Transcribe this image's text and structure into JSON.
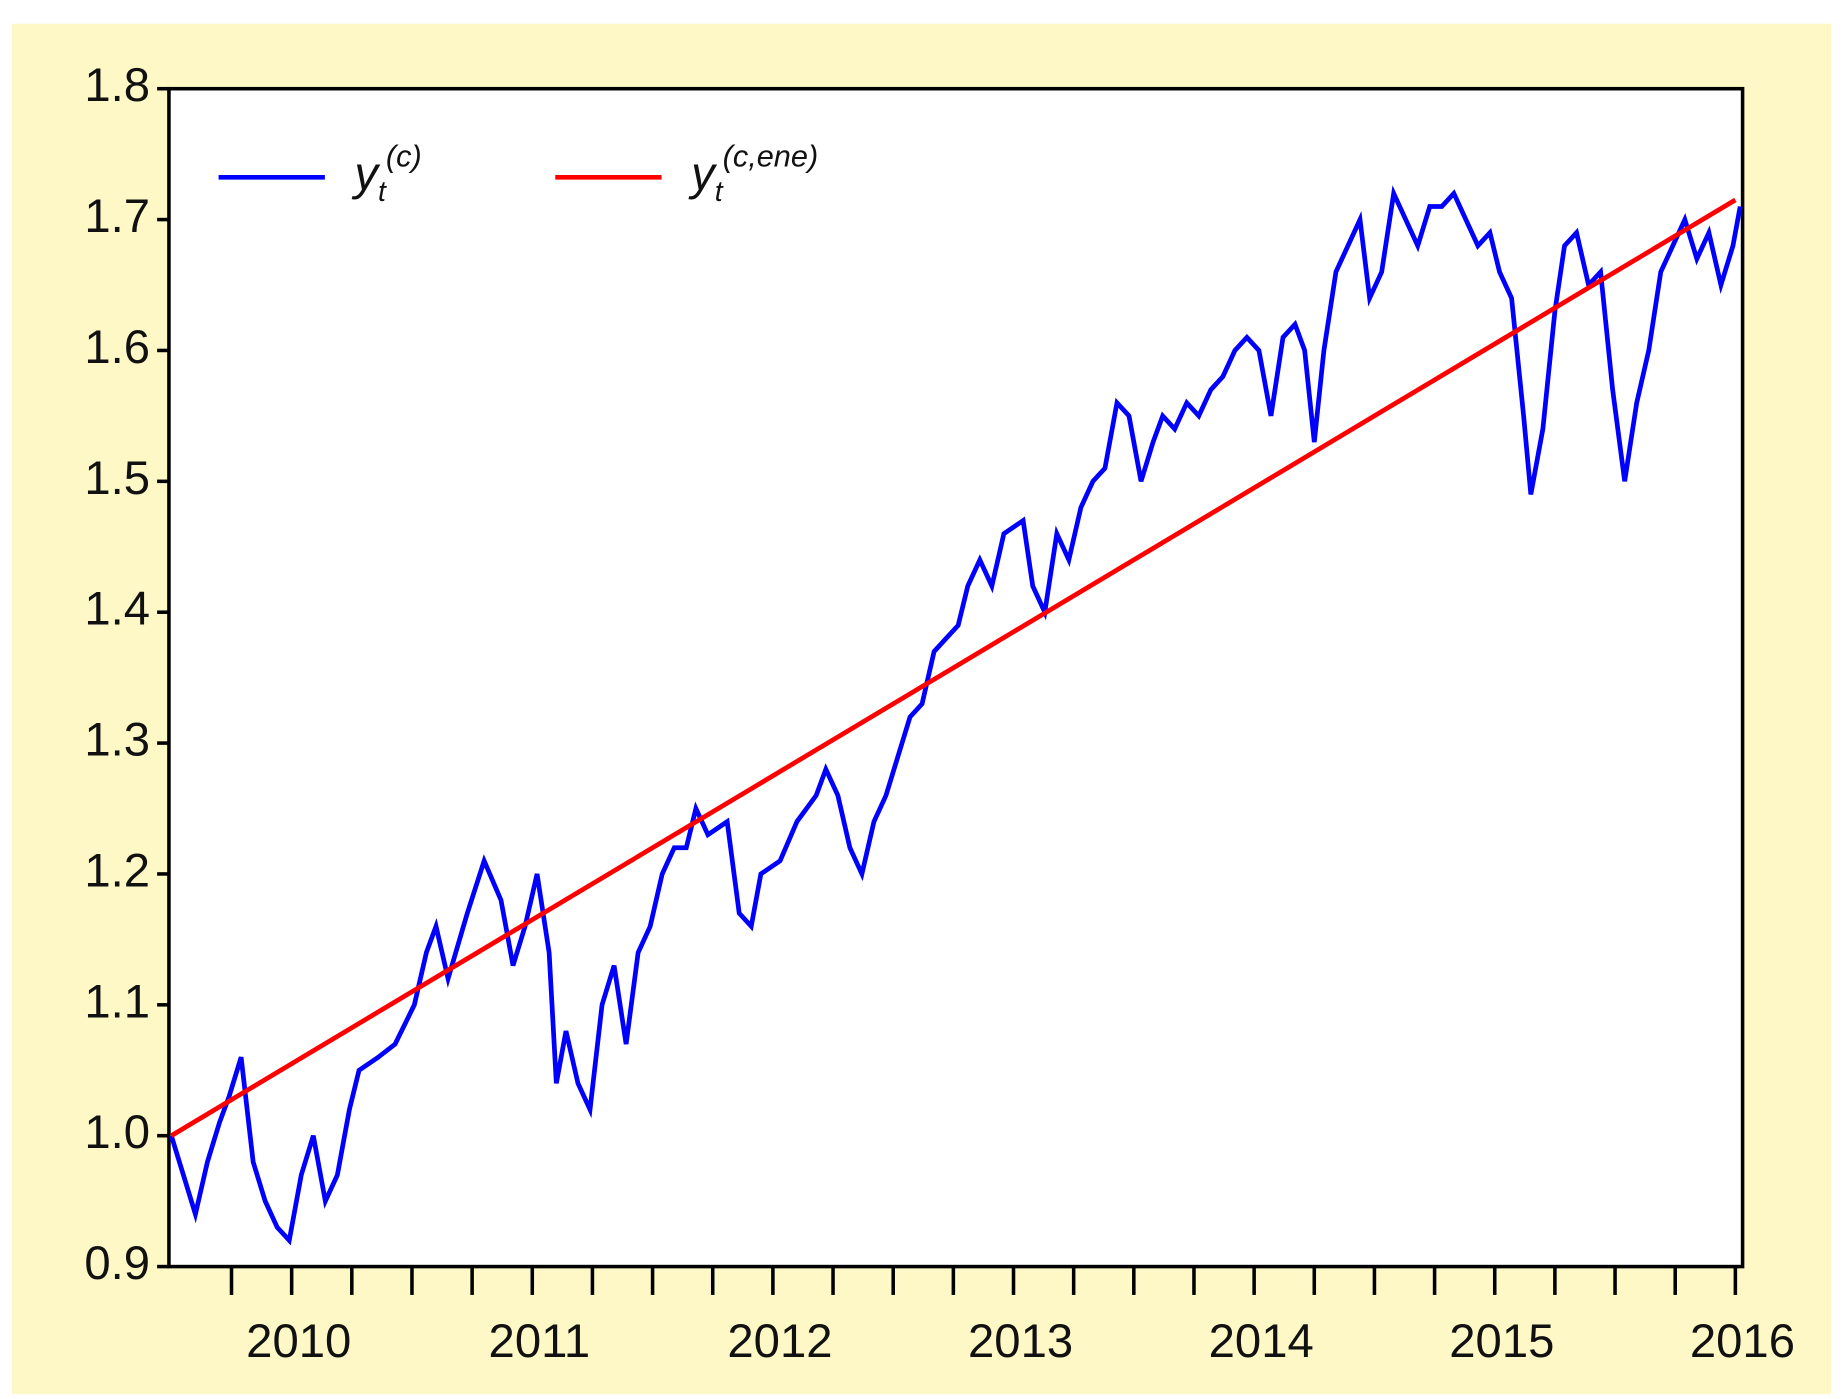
{
  "chart_data": {
    "type": "line",
    "xlim": [
      2009.49,
      2016.03
    ],
    "xticks": [
      2010,
      2011,
      2012,
      2013,
      2014,
      2015,
      2016
    ],
    "x_minor_ticks": [
      2009.75,
      2010.25,
      2010.5,
      2010.75,
      2011.25,
      2011.5,
      2011.75,
      2012.25,
      2012.5,
      2012.75,
      2013.25,
      2013.5,
      2013.75,
      2014.25,
      2014.5,
      2014.75,
      2015.25,
      2015.5,
      2015.75
    ],
    "ylim": [
      0.9,
      1.8
    ],
    "yticks": [
      0.9,
      {
        "value": 1,
        "label": "1.0"
      },
      1.1,
      1.2,
      1.3,
      1.4,
      1.5,
      1.6,
      1.7,
      1.8
    ],
    "grid": false,
    "legend": "top-left",
    "series": [
      {
        "name": "y",
        "name_sub": "t",
        "name_sup": "(c)",
        "color": "#0000ff",
        "x": [
          2009.5,
          2009.55,
          2009.6,
          2009.65,
          2009.7,
          2009.74,
          2009.79,
          2009.84,
          2009.89,
          2009.94,
          2009.99,
          2010.04,
          2010.09,
          2010.14,
          2010.19,
          2010.24,
          2010.28,
          2010.36,
          2010.43,
          2010.51,
          2010.56,
          2010.6,
          2010.65,
          2010.73,
          2010.8,
          2010.87,
          2010.92,
          2010.97,
          2011.02,
          2011.07,
          2011.1,
          2011.14,
          2011.19,
          2011.24,
          2011.29,
          2011.34,
          2011.39,
          2011.44,
          2011.49,
          2011.54,
          2011.59,
          2011.64,
          2011.68,
          2011.73,
          2011.81,
          2011.86,
          2011.91,
          2011.95,
          2012.03,
          2012.1,
          2012.18,
          2012.22,
          2012.27,
          2012.32,
          2012.37,
          2012.42,
          2012.47,
          2012.52,
          2012.57,
          2012.62,
          2012.67,
          2012.72,
          2012.77,
          2012.81,
          2012.86,
          2012.91,
          2012.96,
          2013.04,
          2013.08,
          2013.13,
          2013.18,
          2013.23,
          2013.28,
          2013.33,
          2013.38,
          2013.43,
          2013.48,
          2013.53,
          2013.58,
          2013.62,
          2013.67,
          2013.72,
          2013.77,
          2013.82,
          2013.87,
          2013.92,
          2013.97,
          2014.02,
          2014.07,
          2014.12,
          2014.17,
          2014.21,
          2014.25,
          2014.29,
          2014.34,
          2014.39,
          2014.44,
          2014.48,
          2014.53,
          2014.58,
          2014.63,
          2014.68,
          2014.73,
          2014.78,
          2014.83,
          2014.88,
          2014.93,
          2014.98,
          2015.02,
          2015.07,
          2015.12,
          2015.15,
          2015.2,
          2015.25,
          2015.29,
          2015.34,
          2015.39,
          2015.44,
          2015.49,
          2015.54,
          2015.59,
          2015.64,
          2015.69,
          2015.74,
          2015.79,
          2015.84,
          2015.89,
          2015.94,
          2015.99,
          2016.02
        ],
        "values": [
          1.0,
          0.97,
          0.94,
          0.98,
          1.01,
          1.03,
          1.06,
          0.98,
          0.95,
          0.93,
          0.92,
          0.97,
          1.0,
          0.95,
          0.97,
          1.02,
          1.05,
          1.06,
          1.07,
          1.1,
          1.14,
          1.16,
          1.12,
          1.17,
          1.21,
          1.18,
          1.13,
          1.16,
          1.2,
          1.14,
          1.04,
          1.08,
          1.04,
          1.02,
          1.1,
          1.13,
          1.07,
          1.14,
          1.16,
          1.2,
          1.22,
          1.22,
          1.25,
          1.23,
          1.24,
          1.17,
          1.16,
          1.2,
          1.21,
          1.24,
          1.26,
          1.28,
          1.26,
          1.22,
          1.2,
          1.24,
          1.26,
          1.29,
          1.32,
          1.33,
          1.37,
          1.38,
          1.39,
          1.42,
          1.44,
          1.42,
          1.46,
          1.47,
          1.42,
          1.4,
          1.46,
          1.44,
          1.48,
          1.5,
          1.51,
          1.56,
          1.55,
          1.5,
          1.53,
          1.55,
          1.54,
          1.56,
          1.55,
          1.57,
          1.58,
          1.6,
          1.61,
          1.6,
          1.55,
          1.61,
          1.62,
          1.6,
          1.53,
          1.6,
          1.66,
          1.68,
          1.7,
          1.64,
          1.66,
          1.72,
          1.7,
          1.68,
          1.71,
          1.71,
          1.72,
          1.7,
          1.68,
          1.69,
          1.66,
          1.64,
          1.55,
          1.49,
          1.54,
          1.63,
          1.68,
          1.69,
          1.65,
          1.66,
          1.57,
          1.5,
          1.56,
          1.6,
          1.66,
          1.68,
          1.7,
          1.67,
          1.69,
          1.65,
          1.68,
          1.71
        ]
      },
      {
        "name": "y",
        "name_sub": "t",
        "name_sup": "(c,ene)",
        "color": "#ff0000",
        "x": [
          2009.5,
          2016.0
        ],
        "values": [
          1.0,
          1.715
        ]
      }
    ]
  }
}
